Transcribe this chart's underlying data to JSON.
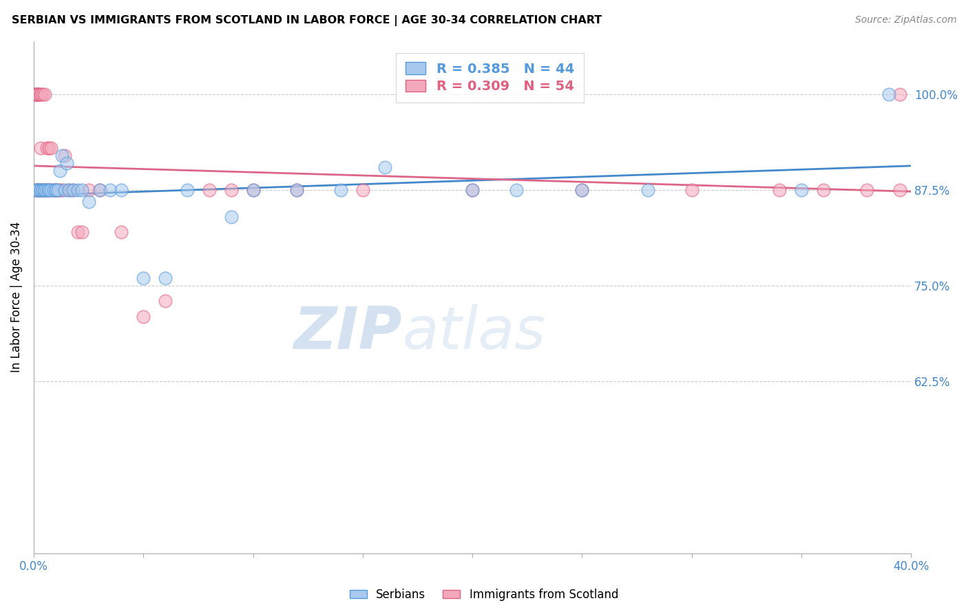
{
  "title": "SERBIAN VS IMMIGRANTS FROM SCOTLAND IN LABOR FORCE | AGE 30-34 CORRELATION CHART",
  "source": "Source: ZipAtlas.com",
  "ylabel": "In Labor Force | Age 30-34",
  "xlim": [
    0.0,
    0.4
  ],
  "ylim": [
    0.4,
    1.07
  ],
  "xtick_vals": [
    0.0,
    0.05,
    0.1,
    0.15,
    0.2,
    0.25,
    0.3,
    0.35,
    0.4
  ],
  "xticklabels": [
    "0.0%",
    "",
    "",
    "",
    "",
    "",
    "",
    "",
    "40.0%"
  ],
  "ytick_positions": [
    0.625,
    0.75,
    0.875,
    1.0
  ],
  "ytick_labels": [
    "62.5%",
    "75.0%",
    "87.5%",
    "100.0%"
  ],
  "blue_fill": "#a8caee",
  "blue_edge": "#5599dd",
  "pink_fill": "#f4a8bc",
  "pink_edge": "#e06080",
  "blue_line_color": "#4488cc",
  "pink_line_color": "#dd6688",
  "grid_color": "#cccccc",
  "axis_color": "#aaaaaa",
  "tick_color": "#4488cc",
  "watermark_color": "#ccdcee",
  "serbians_x": [
    0.001,
    0.001,
    0.002,
    0.002,
    0.003,
    0.003,
    0.004,
    0.004,
    0.005,
    0.005,
    0.006,
    0.007,
    0.007,
    0.008,
    0.009,
    0.01,
    0.01,
    0.011,
    0.012,
    0.013,
    0.014,
    0.015,
    0.016,
    0.018,
    0.02,
    0.022,
    0.025,
    0.03,
    0.035,
    0.04,
    0.05,
    0.06,
    0.07,
    0.09,
    0.1,
    0.12,
    0.14,
    0.16,
    0.2,
    0.22,
    0.25,
    0.28,
    0.35,
    0.39
  ],
  "serbians_y": [
    0.875,
    0.875,
    0.875,
    0.875,
    0.875,
    0.875,
    0.875,
    0.875,
    0.875,
    0.875,
    0.875,
    0.875,
    0.875,
    0.875,
    0.875,
    0.875,
    0.875,
    0.875,
    0.9,
    0.92,
    0.875,
    0.91,
    0.875,
    0.875,
    0.875,
    0.875,
    0.86,
    0.875,
    0.875,
    0.875,
    0.76,
    0.76,
    0.875,
    0.84,
    0.875,
    0.875,
    0.875,
    0.905,
    0.875,
    0.875,
    0.875,
    0.875,
    0.875,
    1.0
  ],
  "scotland_x": [
    0.001,
    0.001,
    0.001,
    0.001,
    0.001,
    0.002,
    0.002,
    0.002,
    0.002,
    0.002,
    0.002,
    0.003,
    0.003,
    0.003,
    0.003,
    0.003,
    0.004,
    0.004,
    0.005,
    0.005,
    0.006,
    0.006,
    0.007,
    0.007,
    0.008,
    0.008,
    0.009,
    0.01,
    0.011,
    0.012,
    0.013,
    0.014,
    0.016,
    0.018,
    0.02,
    0.022,
    0.025,
    0.03,
    0.04,
    0.05,
    0.06,
    0.08,
    0.09,
    0.1,
    0.12,
    0.15,
    0.2,
    0.25,
    0.3,
    0.34,
    0.36,
    0.38,
    0.395,
    0.395
  ],
  "scotland_y": [
    1.0,
    1.0,
    1.0,
    1.0,
    0.875,
    1.0,
    1.0,
    1.0,
    1.0,
    0.875,
    0.875,
    1.0,
    1.0,
    0.93,
    0.875,
    0.875,
    1.0,
    0.875,
    1.0,
    0.875,
    0.93,
    0.875,
    0.93,
    0.875,
    0.93,
    0.875,
    0.875,
    0.875,
    0.875,
    0.875,
    0.875,
    0.92,
    0.875,
    0.875,
    0.82,
    0.82,
    0.875,
    0.875,
    0.82,
    0.71,
    0.73,
    0.875,
    0.875,
    0.875,
    0.875,
    0.875,
    0.875,
    0.875,
    0.875,
    0.875,
    0.875,
    0.875,
    0.875,
    1.0
  ]
}
